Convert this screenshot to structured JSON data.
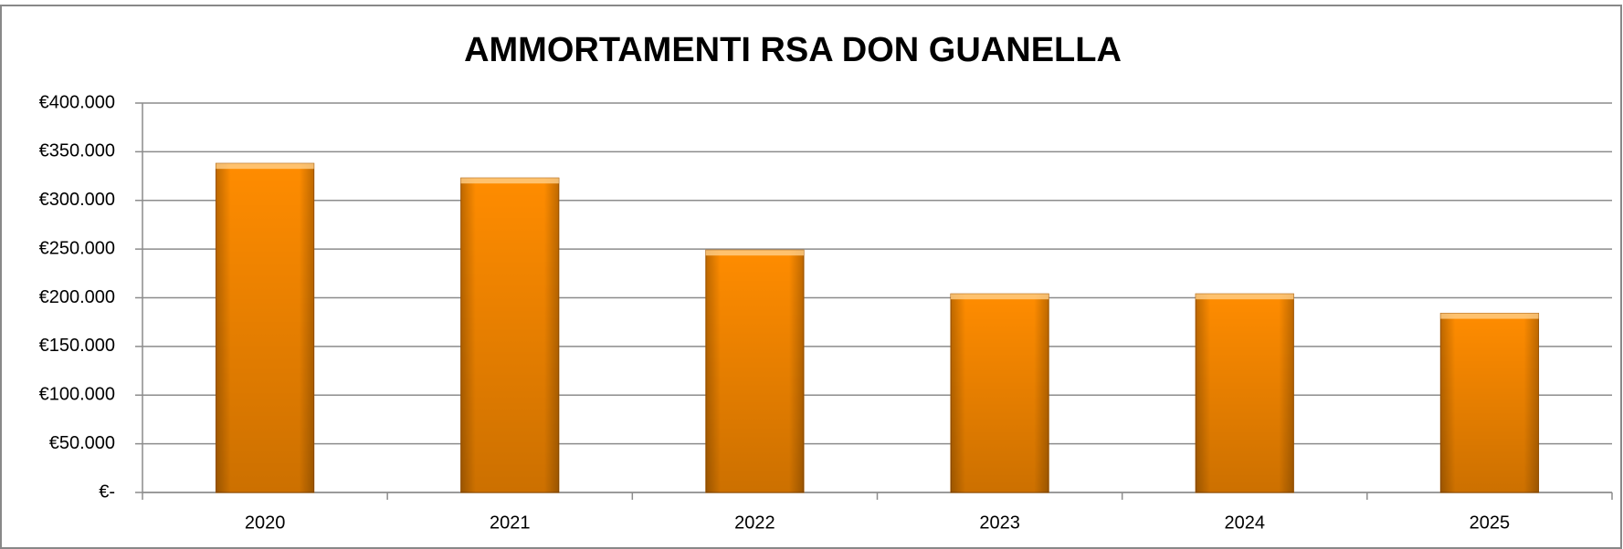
{
  "chart_data": {
    "type": "bar",
    "title": "AMMORTAMENTI RSA DON GUANELLA",
    "categories": [
      "2020",
      "2021",
      "2022",
      "2023",
      "2024",
      "2025"
    ],
    "values": [
      338000,
      323000,
      249000,
      204000,
      204000,
      184000
    ],
    "color": "#ff8c00",
    "ylim": [
      0,
      400000
    ],
    "yticks": [
      {
        "value": 0,
        "label": "€-"
      },
      {
        "value": 50000,
        "label": "€50.000"
      },
      {
        "value": 100000,
        "label": "€100.000"
      },
      {
        "value": 150000,
        "label": "€150.000"
      },
      {
        "value": 200000,
        "label": "€200.000"
      },
      {
        "value": 250000,
        "label": "€250.000"
      },
      {
        "value": 300000,
        "label": "€300.000"
      },
      {
        "value": 350000,
        "label": "€350.000"
      },
      {
        "value": 400000,
        "label": "€400.000"
      }
    ],
    "grid": true
  }
}
